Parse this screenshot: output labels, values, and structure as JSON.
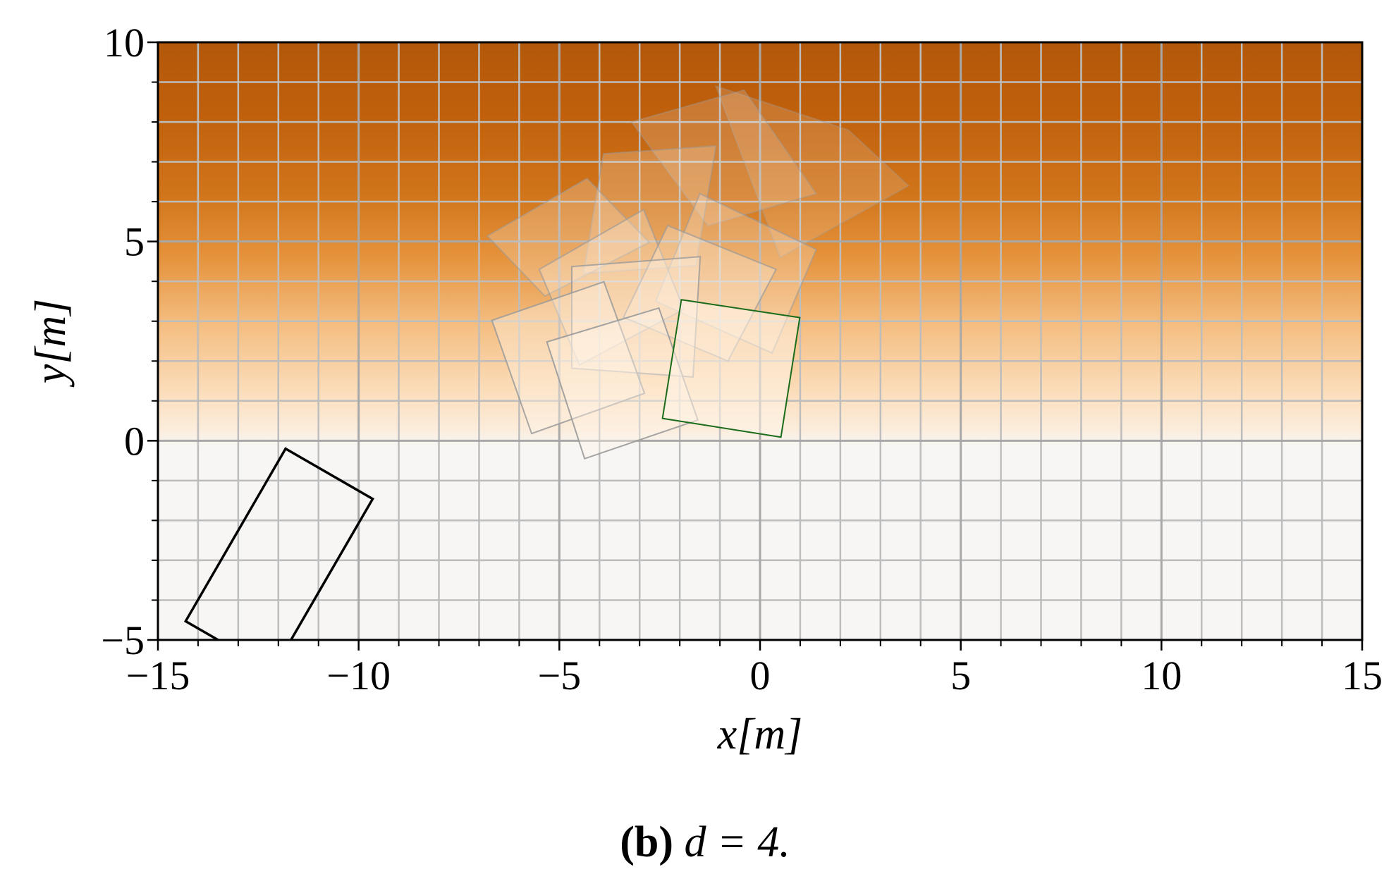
{
  "chart_data": {
    "type": "polygons",
    "xlabel": "x[m]",
    "ylabel": "y[m]",
    "caption_label": "(b)",
    "caption": "d = 4.",
    "xlim": [
      -15,
      15
    ],
    "ylim": [
      -5,
      10
    ],
    "xticks": [
      {
        "value": -15,
        "label": "−15"
      },
      {
        "value": -10,
        "label": "−10"
      },
      {
        "value": -5,
        "label": "−5"
      },
      0,
      5,
      10,
      15
    ],
    "yticks": [
      {
        "value": -5,
        "label": "−5"
      },
      0,
      5,
      10
    ],
    "xminorticks": [
      -14,
      -13,
      -12,
      -11,
      -9,
      -8,
      -7,
      -6,
      -4,
      -3,
      -2,
      -1,
      1,
      2,
      3,
      4,
      6,
      7,
      8,
      9,
      11,
      12,
      13,
      14
    ],
    "yminorticks": [
      -4,
      -3,
      -2,
      -1,
      1,
      2,
      3,
      4,
      6,
      7,
      8,
      9
    ],
    "grid": true,
    "shapes": [
      {
        "color": "#9a9a9a",
        "alpha": 0.35,
        "x": [
          -1.1,
          2.2,
          3.7,
          0.5
        ],
        "y": [
          8.9,
          7.8,
          6.4,
          4.6
        ]
      },
      {
        "color": "#9a9a9a",
        "alpha": 0.4,
        "x": [
          -3.2,
          -0.4,
          1.4,
          -1.3
        ],
        "y": [
          8.0,
          8.8,
          6.2,
          5.4
        ]
      },
      {
        "color": "#9a9a9a",
        "alpha": 0.5,
        "x": [
          -3.9,
          -1.1,
          -1.6,
          -4.4
        ],
        "y": [
          7.2,
          7.4,
          4.4,
          4.2
        ]
      },
      {
        "color": "#9a9a9a",
        "alpha": 0.55,
        "x": [
          -6.79,
          -4.31,
          -2.76,
          -5.36
        ],
        "y": [
          5.14,
          6.58,
          4.98,
          3.63
        ]
      },
      {
        "color": "#9a9a9a",
        "alpha": 0.6,
        "x": [
          -1.5,
          1.4,
          0.3,
          -2.6
        ],
        "y": [
          6.2,
          4.8,
          2.2,
          3.5
        ]
      },
      {
        "color": "#9a9a9a",
        "alpha": 0.65,
        "x": [
          -5.5,
          -2.9,
          -1.9,
          -4.5
        ],
        "y": [
          4.3,
          5.8,
          3.3,
          1.9
        ]
      },
      {
        "color": "#9a9a9a",
        "alpha": 0.7,
        "x": [
          -2.3,
          0.4,
          -0.8,
          -3.4
        ],
        "y": [
          5.4,
          4.3,
          2.0,
          3.1
        ]
      },
      {
        "color": "#9a9a9a",
        "alpha": 0.8,
        "x": [
          -4.69,
          -1.49,
          -1.67,
          -4.69
        ],
        "y": [
          4.37,
          4.62,
          1.6,
          1.82
        ]
      },
      {
        "color": "#9a9a9a",
        "alpha": 0.85,
        "x": [
          -6.68,
          -3.89,
          -2.88,
          -5.69
        ],
        "y": [
          3.02,
          3.99,
          1.19,
          0.18
        ]
      },
      {
        "color": "#9a9a9a",
        "alpha": 0.9,
        "x": [
          -5.31,
          -2.52,
          -1.55,
          -4.37
        ],
        "y": [
          2.48,
          3.33,
          0.52,
          -0.45
        ]
      },
      {
        "color": "#1a6b1a",
        "alpha": 1,
        "x": [
          -1.96,
          0.99,
          0.52,
          -2.43
        ],
        "y": [
          3.54,
          3.09,
          0.09,
          0.56
        ]
      },
      {
        "color": "#000000",
        "alpha": 1,
        "x": [
          -11.82,
          -9.65,
          -12.14,
          -14.31
        ],
        "y": [
          -0.2,
          -1.46,
          -5.79,
          -4.53
        ]
      }
    ]
  }
}
